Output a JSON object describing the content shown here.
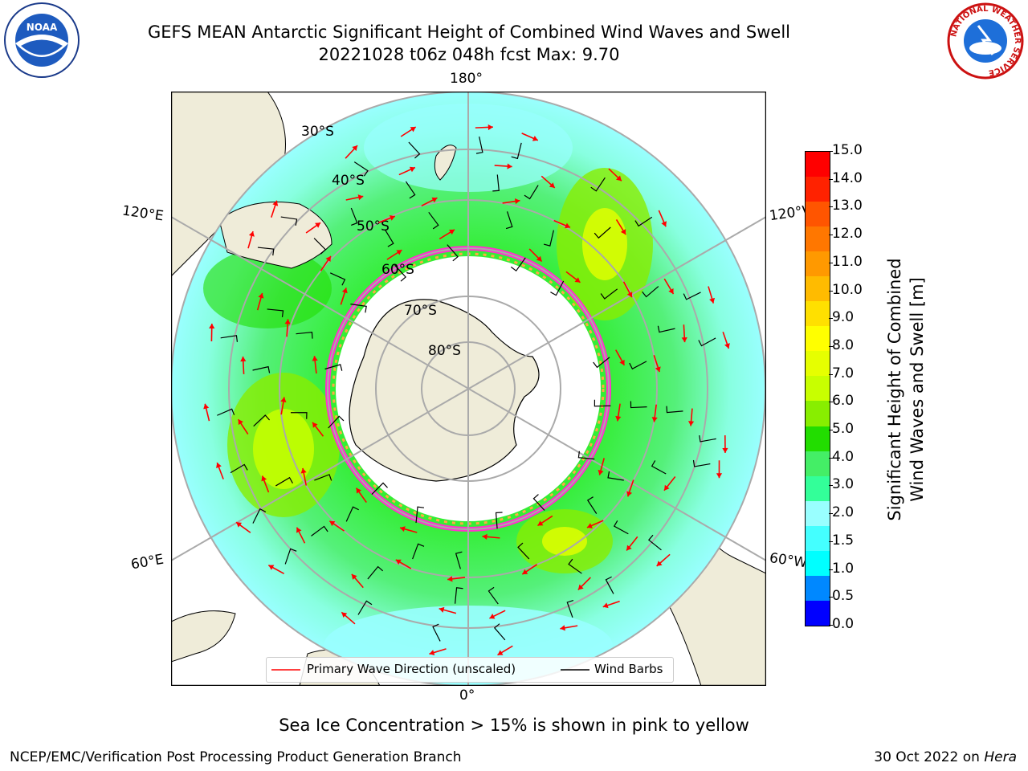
{
  "title": {
    "line1": "GEFS MEAN Antarctic Significant Height of Combined Wind Waves and Swell",
    "line2": "20221028 t06z 048h fcst   Max: 9.70"
  },
  "logos": {
    "noaa_text": "NOAA",
    "nws_ring": "NATIONAL WEATHER SERVICE"
  },
  "map": {
    "lon_labels": {
      "top": "180°",
      "bottom": "0°",
      "left_upper": "120°E",
      "left_lower": "60°E",
      "right_upper": "120°W",
      "right_lower": "60°W"
    },
    "lat_labels": [
      "30°S",
      "40°S",
      "50°S",
      "60°S",
      "70°S",
      "80°S"
    ]
  },
  "legend": {
    "wave_label": "Primary Wave Direction (unscaled)",
    "wave_color": "#ff0000",
    "barb_label": "Wind Barbs",
    "barb_color": "#000000"
  },
  "colorbar": {
    "label_line1": "Significant Height of Combined",
    "label_line2": "Wind Waves and Swell [m]",
    "ticks": [
      "15.0",
      "14.0",
      "13.0",
      "12.0",
      "11.0",
      "10.0",
      "9.0",
      "8.0",
      "7.0",
      "6.0",
      "5.0",
      "4.0",
      "3.0",
      "2.0",
      "1.5",
      "1.0",
      "0.5",
      "0.0"
    ],
    "colors_top_to_bottom": [
      "#ff0000",
      "#ff2200",
      "#ff5500",
      "#ff7700",
      "#ff9900",
      "#ffbb00",
      "#ffe000",
      "#ffff00",
      "#e6ff00",
      "#c8ff00",
      "#88ee00",
      "#22dd00",
      "#44ee66",
      "#33ff99",
      "#99ffff",
      "#44ffff",
      "#00ffff",
      "#0088ff",
      "#0000ff"
    ]
  },
  "caption": "Sea Ice Concentration > 15% is shown in pink to yellow",
  "credit": "NCEP/EMC/Verification Post Processing Product Generation Branch",
  "run_date_prefix": "30 Oct 2022 on ",
  "run_host": "Hera"
}
